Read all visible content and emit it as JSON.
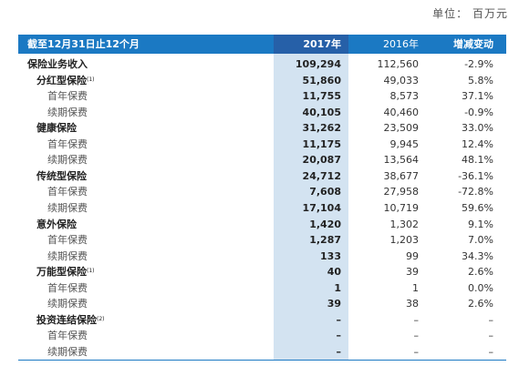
{
  "unit_label": "单位：  百万元",
  "header": {
    "period": "截至12月31日止12个月",
    "col_2017": "2017年",
    "col_2016": "2016年",
    "col_change": "增减变动"
  },
  "rows": [
    {
      "label": "保险业务收入",
      "note": "",
      "y2017": "109,294",
      "y2016": "112,560",
      "change": "-2.9%"
    },
    {
      "label": "分红型保险",
      "note": "(1)",
      "y2017": "51,860",
      "y2016": "49,033",
      "change": "5.8%"
    },
    {
      "label": "首年保费",
      "note": "",
      "y2017": "11,755",
      "y2016": "8,573",
      "change": "37.1%"
    },
    {
      "label": "续期保费",
      "note": "",
      "y2017": "40,105",
      "y2016": "40,460",
      "change": "-0.9%"
    },
    {
      "label": "健康保险",
      "note": "",
      "y2017": "31,262",
      "y2016": "23,509",
      "change": "33.0%"
    },
    {
      "label": "首年保费",
      "note": "",
      "y2017": "11,175",
      "y2016": "9,945",
      "change": "12.4%"
    },
    {
      "label": "续期保费",
      "note": "",
      "y2017": "20,087",
      "y2016": "13,564",
      "change": "48.1%"
    },
    {
      "label": "传统型保险",
      "note": "",
      "y2017": "24,712",
      "y2016": "38,677",
      "change": "-36.1%"
    },
    {
      "label": "首年保费",
      "note": "",
      "y2017": "7,608",
      "y2016": "27,958",
      "change": "-72.8%"
    },
    {
      "label": "续期保费",
      "note": "",
      "y2017": "17,104",
      "y2016": "10,719",
      "change": "59.6%"
    },
    {
      "label": "意外保险",
      "note": "",
      "y2017": "1,420",
      "y2016": "1,302",
      "change": "9.1%"
    },
    {
      "label": "首年保费",
      "note": "",
      "y2017": "1,287",
      "y2016": "1,203",
      "change": "7.0%"
    },
    {
      "label": "续期保费",
      "note": "",
      "y2017": "133",
      "y2016": "99",
      "change": "34.3%"
    },
    {
      "label": "万能型保险",
      "note": "(1)",
      "y2017": "40",
      "y2016": "39",
      "change": "2.6%"
    },
    {
      "label": "首年保费",
      "note": "",
      "y2017": "1",
      "y2016": "1",
      "change": "0.0%"
    },
    {
      "label": "续期保费",
      "note": "",
      "y2017": "39",
      "y2016": "38",
      "change": "2.6%"
    },
    {
      "label": "投资连结保险",
      "note": "(2)",
      "y2017": "–",
      "y2016": "–",
      "change": "–"
    },
    {
      "label": "首年保费",
      "note": "",
      "y2017": "–",
      "y2016": "–",
      "change": "–"
    },
    {
      "label": "续期保费",
      "note": "",
      "y2017": "–",
      "y2016": "–",
      "change": "–"
    }
  ]
}
